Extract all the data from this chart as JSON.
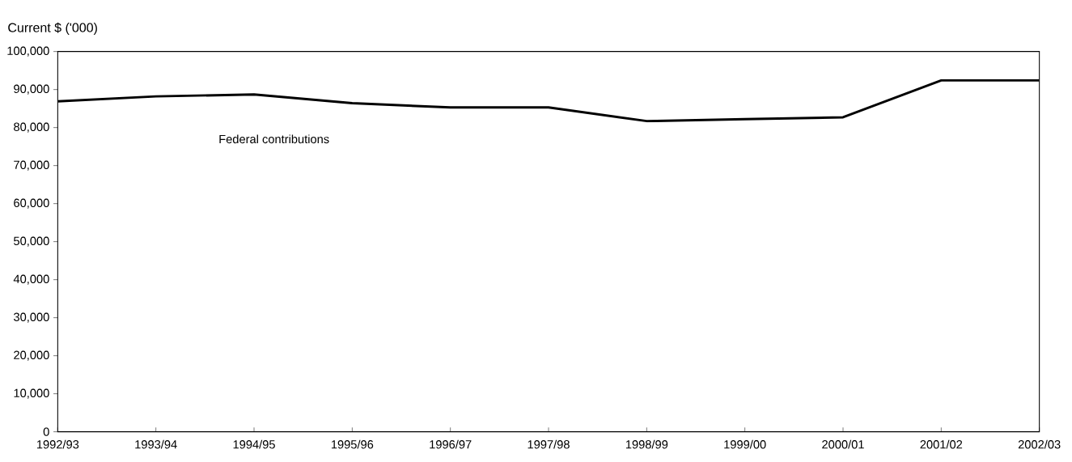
{
  "chart_data": {
    "type": "line",
    "ylabel": "Current $ ('000)",
    "categories": [
      "1992/93",
      "1993/94",
      "1994/95",
      "1995/96",
      "1996/97",
      "1997/98",
      "1998/99",
      "1999/00",
      "2000/01",
      "2001/02",
      "2002/03"
    ],
    "series": [
      {
        "name": "Federal contributions",
        "color": "#000000",
        "values": [
          86900,
          88200,
          88700,
          86400,
          85300,
          85300,
          81700,
          82200,
          82700,
          92400,
          92400
        ]
      }
    ],
    "ylim": [
      0,
      100000
    ],
    "yticks": [
      0,
      {
        "value": 10000,
        "label": "10,000"
      },
      {
        "value": 20000,
        "label": "20,000"
      },
      {
        "value": 30000,
        "label": "30,000"
      },
      {
        "value": 40000,
        "label": "40,000"
      },
      {
        "value": 50000,
        "label": "50,000"
      },
      {
        "value": 60000,
        "label": "60,000"
      },
      {
        "value": 70000,
        "label": "70,000"
      },
      {
        "value": 80000,
        "label": "80,000"
      },
      {
        "value": 90000,
        "label": "90,000"
      },
      {
        "value": 100000,
        "label": "100,000"
      }
    ],
    "grid": false,
    "legend": false,
    "marker": "none",
    "line_style": "solid"
  }
}
